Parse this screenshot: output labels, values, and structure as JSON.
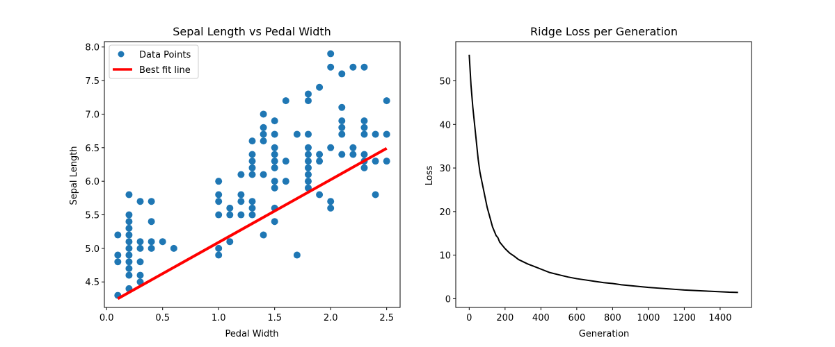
{
  "chart_data": [
    {
      "type": "scatter",
      "title": "Sepal Length vs Pedal Width",
      "xlabel": "Pedal Width",
      "ylabel": "Sepal Length",
      "xlim": [
        -0.02,
        2.62
      ],
      "ylim": [
        4.12,
        8.08
      ],
      "xticks": [
        0.0,
        0.5,
        1.0,
        1.5,
        2.0,
        2.5
      ],
      "xtick_labels": [
        "0.0",
        "0.5",
        "1.0",
        "1.5",
        "2.0",
        "2.5"
      ],
      "yticks": [
        4.5,
        5.0,
        5.5,
        6.0,
        6.5,
        7.0,
        7.5,
        8.0
      ],
      "ytick_labels": [
        "4.5",
        "5.0",
        "5.5",
        "6.0",
        "6.5",
        "7.0",
        "7.5",
        "8.0"
      ],
      "legend_position": "top-left",
      "series": [
        {
          "name": "Data Points",
          "kind": "scatter",
          "color": "#1f77b4",
          "points": [
            [
              0.1,
              5.2
            ],
            [
              0.1,
              4.9
            ],
            [
              0.1,
              4.8
            ],
            [
              0.1,
              4.3
            ],
            [
              0.2,
              5.8
            ],
            [
              0.2,
              5.5
            ],
            [
              0.2,
              5.4
            ],
            [
              0.2,
              5.3
            ],
            [
              0.2,
              5.2
            ],
            [
              0.2,
              5.1
            ],
            [
              0.2,
              5.0
            ],
            [
              0.2,
              4.9
            ],
            [
              0.2,
              4.8
            ],
            [
              0.2,
              4.7
            ],
            [
              0.2,
              4.6
            ],
            [
              0.2,
              4.4
            ],
            [
              0.3,
              5.7
            ],
            [
              0.3,
              5.1
            ],
            [
              0.3,
              5.0
            ],
            [
              0.3,
              4.8
            ],
            [
              0.3,
              4.6
            ],
            [
              0.3,
              4.5
            ],
            [
              0.4,
              5.7
            ],
            [
              0.4,
              5.4
            ],
            [
              0.4,
              5.1
            ],
            [
              0.4,
              5.0
            ],
            [
              0.5,
              5.1
            ],
            [
              0.6,
              5.0
            ],
            [
              1.0,
              6.0
            ],
            [
              1.0,
              5.8
            ],
            [
              1.0,
              5.7
            ],
            [
              1.0,
              5.5
            ],
            [
              1.0,
              5.0
            ],
            [
              1.0,
              4.9
            ],
            [
              1.1,
              5.6
            ],
            [
              1.1,
              5.5
            ],
            [
              1.1,
              5.1
            ],
            [
              1.2,
              6.1
            ],
            [
              1.2,
              5.8
            ],
            [
              1.2,
              5.7
            ],
            [
              1.2,
              5.5
            ],
            [
              1.3,
              6.6
            ],
            [
              1.3,
              6.4
            ],
            [
              1.3,
              6.3
            ],
            [
              1.3,
              6.2
            ],
            [
              1.3,
              6.1
            ],
            [
              1.3,
              5.7
            ],
            [
              1.3,
              5.6
            ],
            [
              1.3,
              5.5
            ],
            [
              1.4,
              7.0
            ],
            [
              1.4,
              6.8
            ],
            [
              1.4,
              6.7
            ],
            [
              1.4,
              6.6
            ],
            [
              1.4,
              6.1
            ],
            [
              1.4,
              5.2
            ],
            [
              1.5,
              6.9
            ],
            [
              1.5,
              6.7
            ],
            [
              1.5,
              6.5
            ],
            [
              1.5,
              6.4
            ],
            [
              1.5,
              6.3
            ],
            [
              1.5,
              6.2
            ],
            [
              1.5,
              6.0
            ],
            [
              1.5,
              5.9
            ],
            [
              1.5,
              5.6
            ],
            [
              1.5,
              5.4
            ],
            [
              1.6,
              7.2
            ],
            [
              1.6,
              6.3
            ],
            [
              1.6,
              6.0
            ],
            [
              1.7,
              6.7
            ],
            [
              1.7,
              4.9
            ],
            [
              1.8,
              7.3
            ],
            [
              1.8,
              7.2
            ],
            [
              1.8,
              6.7
            ],
            [
              1.8,
              6.5
            ],
            [
              1.8,
              6.4
            ],
            [
              1.8,
              6.3
            ],
            [
              1.8,
              6.2
            ],
            [
              1.8,
              6.1
            ],
            [
              1.8,
              6.0
            ],
            [
              1.8,
              5.9
            ],
            [
              1.9,
              7.4
            ],
            [
              1.9,
              6.4
            ],
            [
              1.9,
              6.3
            ],
            [
              1.9,
              5.8
            ],
            [
              2.0,
              7.9
            ],
            [
              2.0,
              7.7
            ],
            [
              2.0,
              6.5
            ],
            [
              2.0,
              5.7
            ],
            [
              2.0,
              5.6
            ],
            [
              2.1,
              7.6
            ],
            [
              2.1,
              7.1
            ],
            [
              2.1,
              6.9
            ],
            [
              2.1,
              6.8
            ],
            [
              2.1,
              6.7
            ],
            [
              2.1,
              6.4
            ],
            [
              2.2,
              7.7
            ],
            [
              2.2,
              6.5
            ],
            [
              2.2,
              6.4
            ],
            [
              2.3,
              7.7
            ],
            [
              2.3,
              6.9
            ],
            [
              2.3,
              6.8
            ],
            [
              2.3,
              6.7
            ],
            [
              2.3,
              6.4
            ],
            [
              2.3,
              6.3
            ],
            [
              2.3,
              6.2
            ],
            [
              2.4,
              6.7
            ],
            [
              2.4,
              6.3
            ],
            [
              2.4,
              5.8
            ],
            [
              2.5,
              7.2
            ],
            [
              2.5,
              6.7
            ],
            [
              2.5,
              6.3
            ]
          ]
        },
        {
          "name": "Best fit line",
          "kind": "line",
          "color": "#ff0000",
          "points": [
            [
              0.1,
              4.25
            ],
            [
              2.5,
              6.49
            ]
          ]
        }
      ]
    },
    {
      "type": "line",
      "title": "Ridge Loss per Generation",
      "xlabel": "Generation",
      "ylabel": "Loss",
      "xlim": [
        -75,
        1575
      ],
      "ylim": [
        -2.0,
        59.0
      ],
      "xticks": [
        0,
        200,
        400,
        600,
        800,
        1000,
        1200,
        1400
      ],
      "xtick_labels": [
        "0",
        "200",
        "400",
        "600",
        "800",
        "1000",
        "1200",
        "1400"
      ],
      "yticks": [
        0,
        10,
        20,
        30,
        40,
        50
      ],
      "ytick_labels": [
        "0",
        "10",
        "20",
        "30",
        "40",
        "50"
      ],
      "series": [
        {
          "kind": "line",
          "color": "#000000",
          "x": [
            0,
            10,
            20,
            30,
            40,
            50,
            60,
            70,
            80,
            90,
            100,
            110,
            120,
            130,
            140,
            150,
            160,
            170,
            180,
            190,
            200,
            225,
            250,
            275,
            300,
            325,
            350,
            375,
            400,
            450,
            500,
            550,
            600,
            650,
            700,
            750,
            800,
            850,
            900,
            950,
            1000,
            1050,
            1100,
            1150,
            1200,
            1250,
            1300,
            1350,
            1400,
            1450,
            1500
          ],
          "y": [
            56.0,
            49.0,
            44.0,
            40.0,
            36.0,
            32.0,
            29.0,
            27.0,
            25.0,
            23.0,
            21.0,
            19.5,
            18.0,
            16.5,
            15.5,
            14.5,
            14.0,
            13.0,
            12.5,
            12.0,
            11.5,
            10.5,
            9.8,
            9.0,
            8.5,
            8.0,
            7.6,
            7.2,
            6.8,
            6.0,
            5.5,
            5.0,
            4.6,
            4.3,
            4.0,
            3.7,
            3.5,
            3.2,
            3.0,
            2.8,
            2.6,
            2.45,
            2.3,
            2.15,
            2.0,
            1.9,
            1.8,
            1.7,
            1.6,
            1.5,
            1.45
          ]
        }
      ]
    }
  ]
}
